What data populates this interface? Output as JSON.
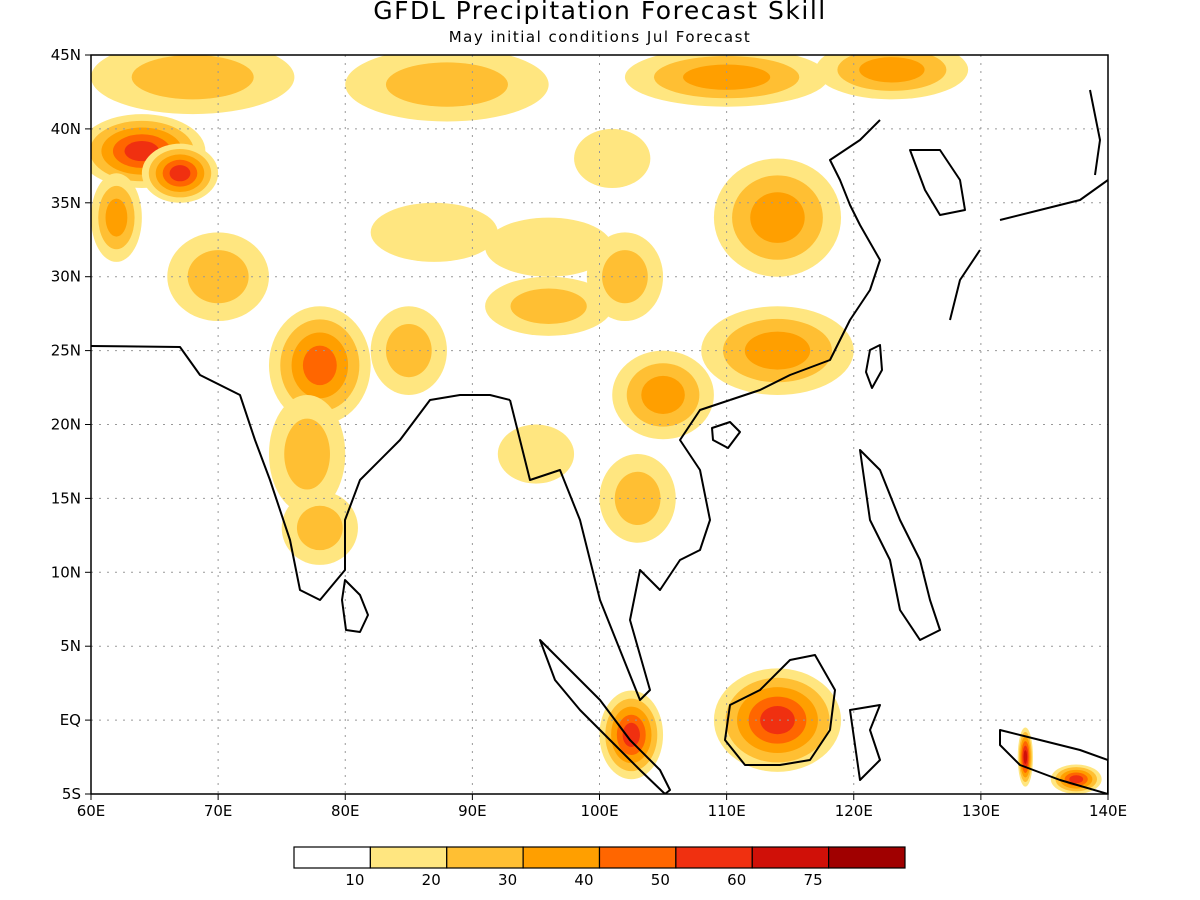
{
  "title": "GFDL Precipitation Forecast Skill",
  "subtitle": "May initial conditions  Jul Forecast",
  "axes": {
    "lon_min": 60,
    "lon_max": 140,
    "lat_min": -5,
    "lat_max": 45,
    "x_ticks": [
      {
        "v": 60,
        "t": "60E"
      },
      {
        "v": 70,
        "t": "70E"
      },
      {
        "v": 80,
        "t": "80E"
      },
      {
        "v": 90,
        "t": "90E"
      },
      {
        "v": 100,
        "t": "100E"
      },
      {
        "v": 110,
        "t": "110E"
      },
      {
        "v": 120,
        "t": "120E"
      },
      {
        "v": 130,
        "t": "130E"
      },
      {
        "v": 140,
        "t": "140E"
      }
    ],
    "y_ticks": [
      {
        "v": 45,
        "t": "45N"
      },
      {
        "v": 40,
        "t": "40N"
      },
      {
        "v": 35,
        "t": "35N"
      },
      {
        "v": 30,
        "t": "30N"
      },
      {
        "v": 25,
        "t": "25N"
      },
      {
        "v": 20,
        "t": "20N"
      },
      {
        "v": 15,
        "t": "15N"
      },
      {
        "v": 10,
        "t": "10N"
      },
      {
        "v": 5,
        "t": "5N"
      },
      {
        "v": 0,
        "t": "EQ"
      },
      {
        "v": -5,
        "t": "5S"
      }
    ],
    "grid": "dotted"
  },
  "legend": {
    "colors": [
      "#ffffff",
      "#ffe680",
      "#ffbf33",
      "#ff9f00",
      "#ff6600",
      "#f03010",
      "#d01008",
      "#a00000"
    ],
    "labels": [
      "10",
      "20",
      "30",
      "40",
      "50",
      "60",
      "75"
    ]
  },
  "skill_blobs": [
    {
      "lon": 68,
      "lat": 43.5,
      "rlon": 8,
      "rlat": 2.5,
      "v": 25
    },
    {
      "lon": 88,
      "lat": 43,
      "rlon": 8,
      "rlat": 2.5,
      "v": 20
    },
    {
      "lon": 110,
      "lat": 43.5,
      "rlon": 8,
      "rlat": 2,
      "v": 30
    },
    {
      "lon": 123,
      "lat": 44,
      "rlon": 6,
      "rlat": 2,
      "v": 35
    },
    {
      "lon": 64,
      "lat": 38.5,
      "rlon": 5,
      "rlat": 2.5,
      "v": 50
    },
    {
      "lon": 67,
      "lat": 37,
      "rlon": 3,
      "rlat": 2,
      "v": 55
    },
    {
      "lon": 62,
      "lat": 34,
      "rlon": 2,
      "rlat": 3,
      "v": 35
    },
    {
      "lon": 70,
      "lat": 30,
      "rlon": 4,
      "rlat": 3,
      "v": 25
    },
    {
      "lon": 78,
      "lat": 24,
      "rlon": 4,
      "rlat": 4,
      "v": 40
    },
    {
      "lon": 77,
      "lat": 18,
      "rlon": 3,
      "rlat": 4,
      "v": 25
    },
    {
      "lon": 78,
      "lat": 13,
      "rlon": 3,
      "rlat": 2.5,
      "v": 20
    },
    {
      "lon": 85,
      "lat": 25,
      "rlon": 3,
      "rlat": 3,
      "v": 25
    },
    {
      "lon": 87,
      "lat": 33,
      "rlon": 5,
      "rlat": 2,
      "v": 15
    },
    {
      "lon": 96,
      "lat": 32,
      "rlon": 5,
      "rlat": 2,
      "v": 15
    },
    {
      "lon": 96,
      "lat": 28,
      "rlon": 5,
      "rlat": 2,
      "v": 20
    },
    {
      "lon": 102,
      "lat": 30,
      "rlon": 3,
      "rlat": 3,
      "v": 25
    },
    {
      "lon": 105,
      "lat": 22,
      "rlon": 4,
      "rlat": 3,
      "v": 35
    },
    {
      "lon": 114,
      "lat": 25,
      "rlon": 6,
      "rlat": 3,
      "v": 30
    },
    {
      "lon": 114,
      "lat": 34,
      "rlon": 5,
      "rlat": 4,
      "v": 35
    },
    {
      "lon": 103,
      "lat": 15,
      "rlon": 3,
      "rlat": 3,
      "v": 25
    },
    {
      "lon": 95,
      "lat": 18,
      "rlon": 3,
      "rlat": 2,
      "v": 15
    },
    {
      "lon": 101,
      "lat": 38,
      "rlon": 3,
      "rlat": 2,
      "v": 15
    },
    {
      "lon": 114,
      "lat": 0,
      "rlon": 5,
      "rlat": 3.5,
      "v": 55
    },
    {
      "lon": 102.5,
      "lat": -1,
      "rlon": 2.5,
      "rlat": 3,
      "v": 55
    },
    {
      "lon": 137.5,
      "lat": -4,
      "rlon": 2,
      "rlat": 1,
      "v": 50
    },
    {
      "lon": 133.5,
      "lat": -2.5,
      "rlon": 0.6,
      "rlat": 2,
      "v": 60
    }
  ]
}
